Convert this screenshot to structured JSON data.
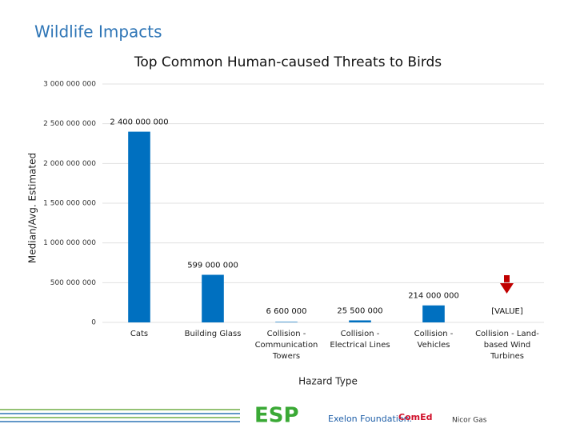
{
  "slide_title": "Wildlife Impacts",
  "chart_data": {
    "type": "bar",
    "title": "Top Common Human-caused Threats to Birds",
    "ylabel": "Median/Avg. Estimated",
    "xlabel": "Hazard Type",
    "categories": [
      "Cats",
      "Building Glass",
      "Collision - Communication Towers",
      "Collision - Electrical Lines",
      "Collision - Vehicles",
      "Collision - Land-based Wind Turbines"
    ],
    "values": [
      2400000000,
      599000000,
      6600000,
      25500000,
      214000000,
      null
    ],
    "value_labels": [
      "2 400 000 000",
      "599 000 000",
      "6 600 000",
      "25 500 000",
      "214 000 000",
      "[VALUE]"
    ],
    "color": "#0070c0",
    "ylim": [
      0,
      3000000000
    ],
    "yticks": [
      0,
      {
        "value": 500000000,
        "label": "500 000 000"
      },
      {
        "value": 1000000000,
        "label": "1 000 000 000"
      },
      {
        "value": 1500000000,
        "label": "1 500 000 000"
      },
      {
        "value": 2000000000,
        "label": "2 000 000 000"
      },
      {
        "value": 2500000000,
        "label": "2 500 000 000"
      },
      {
        "value": 3000000000,
        "label": "3 000 000 000"
      }
    ],
    "grid": true
  },
  "logos": [
    "ESP",
    "Exelon Foundation.",
    "ComEd",
    "Nicor Gas"
  ]
}
